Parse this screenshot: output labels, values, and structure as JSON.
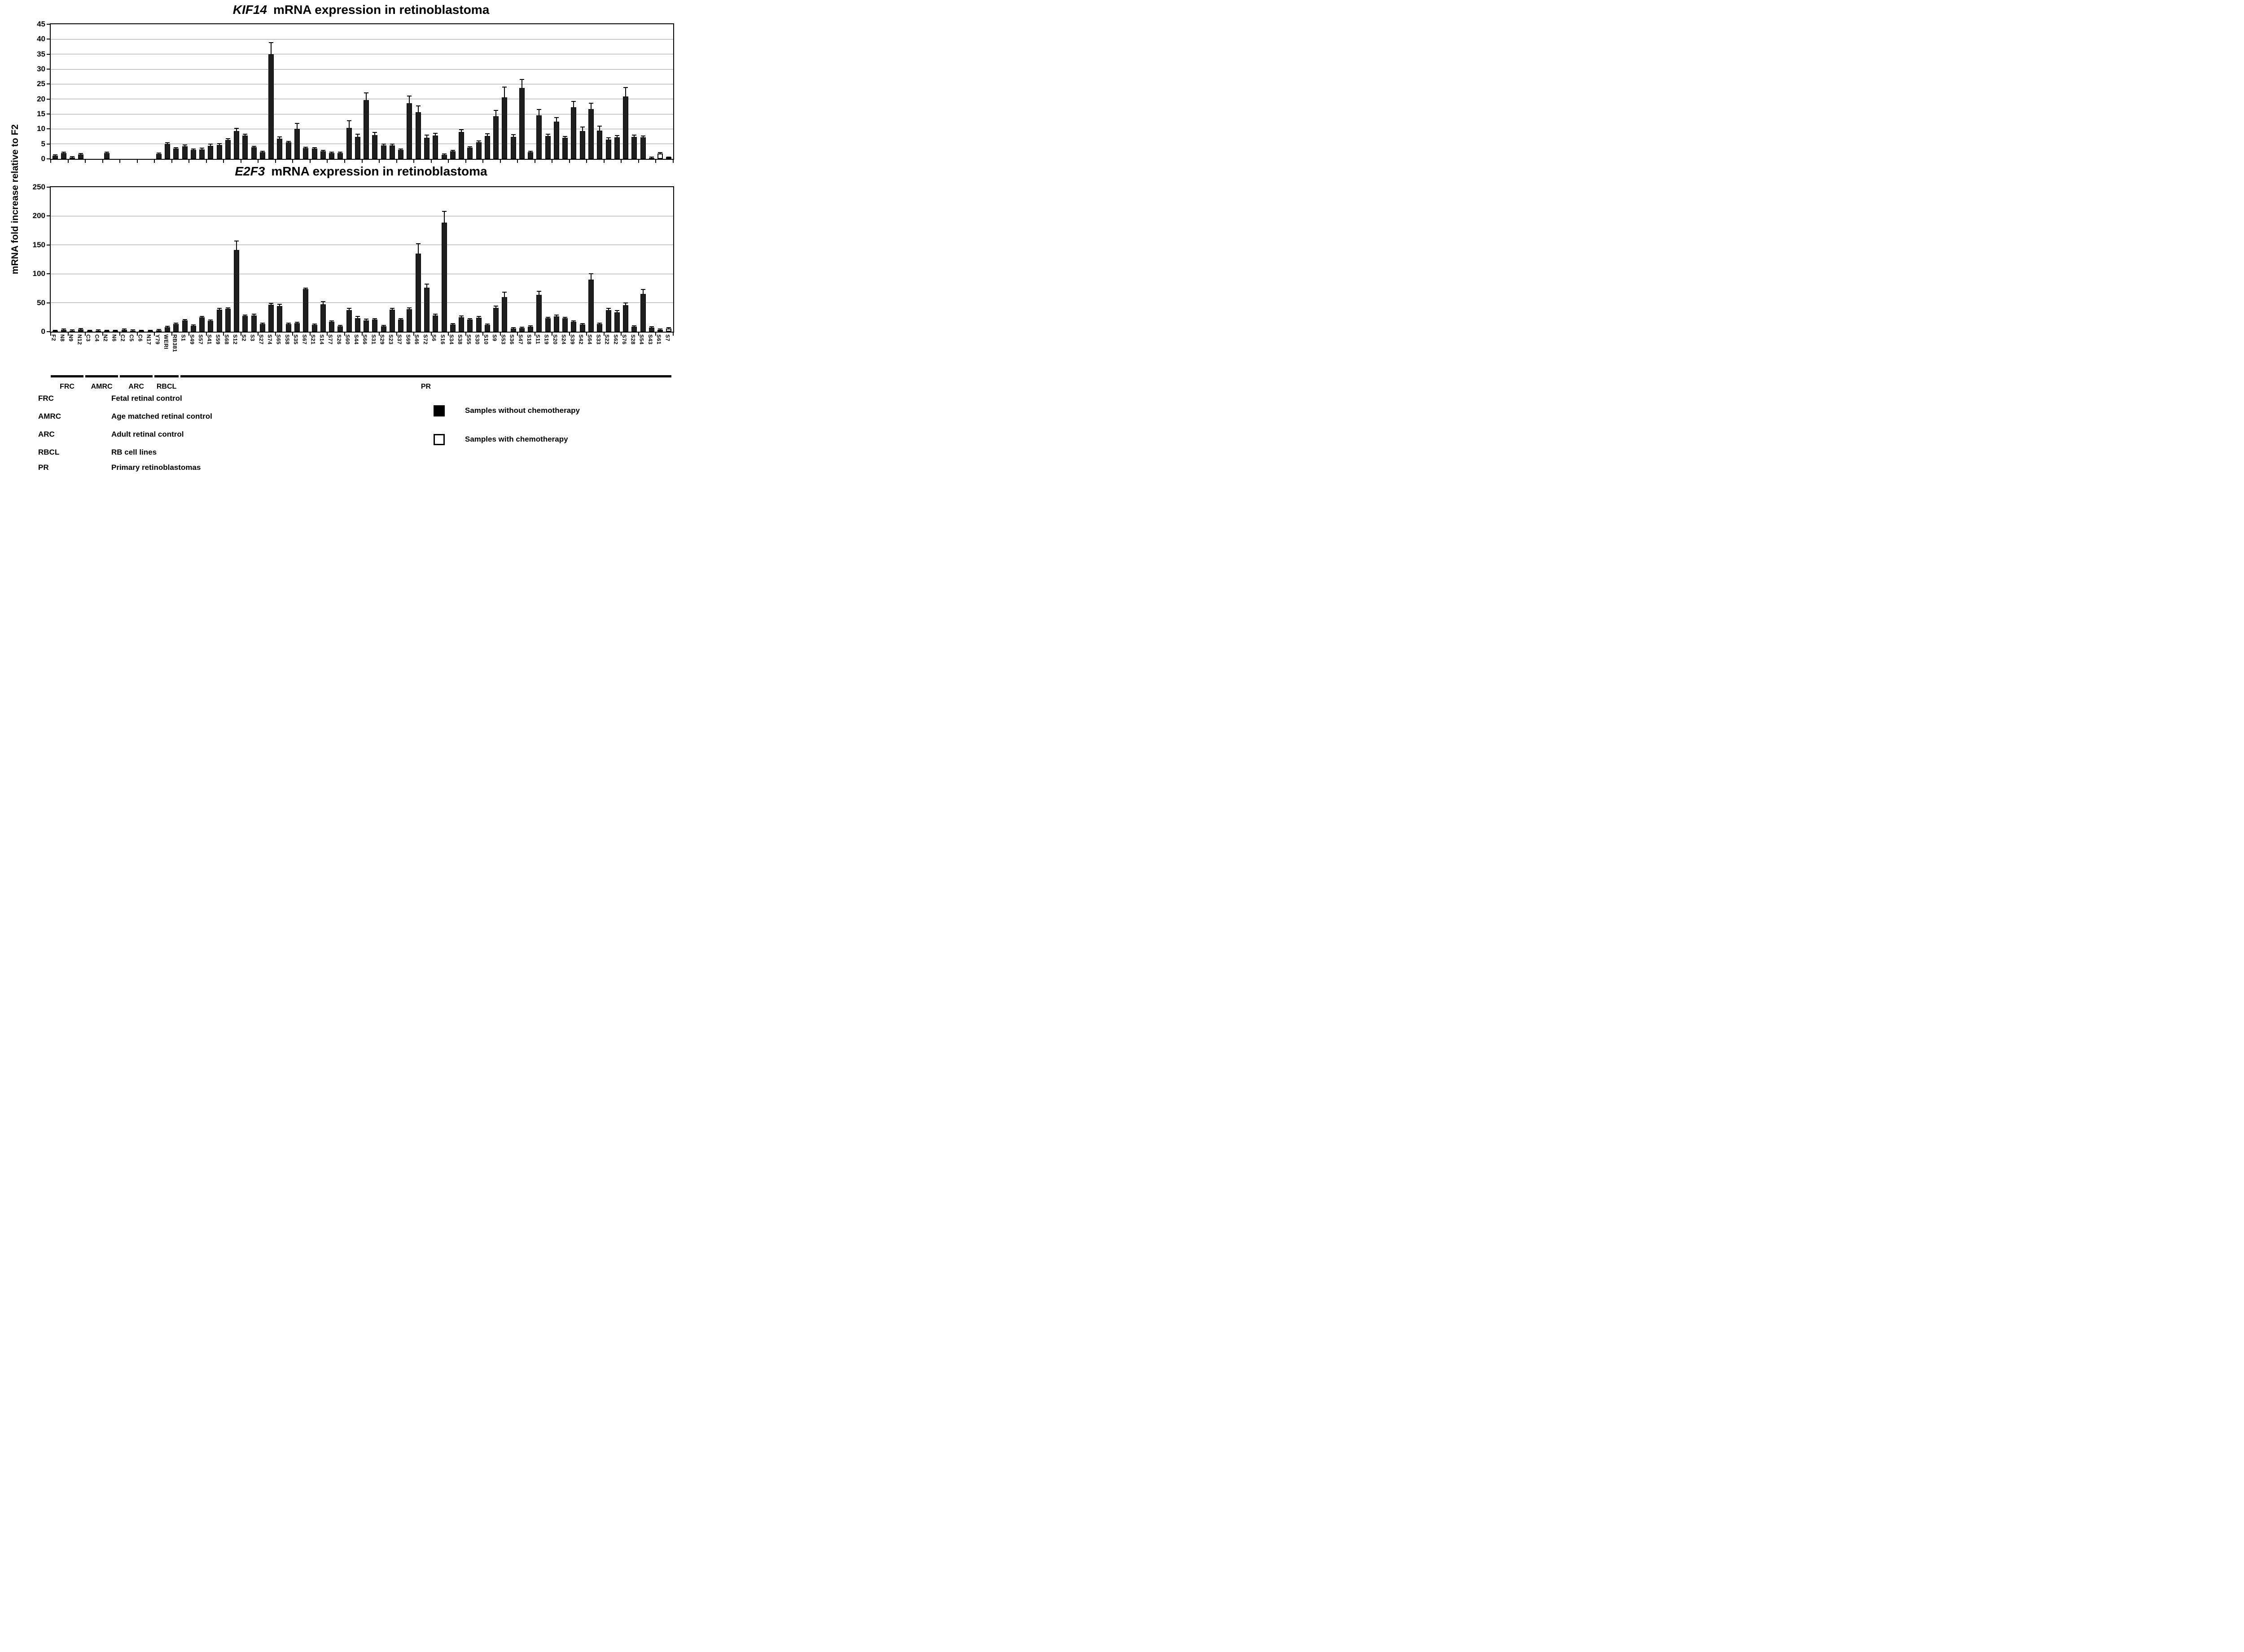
{
  "ylabel": "mRNA fold increase relative to F2",
  "chart_data": [
    {
      "type": "bar",
      "name": "kif14",
      "title": "KIF14  mRNA expression in retinoblastoma",
      "title_gene": "KIF14",
      "title_rest": "mRNA expression in retinoblastoma",
      "ylabel": "mRNA fold increase relative to F2",
      "ylim": [
        0,
        45
      ],
      "ytick_step": 5,
      "yticks": [
        0,
        5,
        10,
        15,
        20,
        25,
        30,
        35,
        40,
        45
      ],
      "grid": true,
      "categories": [
        "F2",
        "N8",
        "N9",
        "N12",
        "C3",
        "C4",
        "N2",
        "N6",
        "C2",
        "C5",
        "C6",
        "N17",
        "Y79",
        "WERI",
        "RB381",
        "S1",
        "S49",
        "S57",
        "S41",
        "S59",
        "S68",
        "S12",
        "S2",
        "S3",
        "S27",
        "S74",
        "S65",
        "S58",
        "S35",
        "S67",
        "S21",
        "S14",
        "S77",
        "S26",
        "S60",
        "S44",
        "S66",
        "S31",
        "S29",
        "S23",
        "S37",
        "S69",
        "S46",
        "S72",
        "S6",
        "S16",
        "S34",
        "S38",
        "S55",
        "S30",
        "S10",
        "S9",
        "S53",
        "S36",
        "S47",
        "S18",
        "S11",
        "S19",
        "S20",
        "S24",
        "S39",
        "S42",
        "S64",
        "S33",
        "S22",
        "S62",
        "S76",
        "S28",
        "S54",
        "S43",
        "S61",
        "S7"
      ],
      "values": [
        1.0,
        1.9,
        0.5,
        1.5,
        0,
        0,
        2.0,
        0,
        0,
        0,
        0,
        0,
        1.7,
        4.9,
        3.5,
        4.2,
        3.0,
        3.2,
        4.4,
        4.7,
        6.3,
        9.3,
        7.8,
        3.9,
        2.3,
        35.0,
        6.7,
        5.5,
        10.1,
        3.6,
        3.4,
        2.5,
        1.9,
        2.0,
        10.4,
        7.4,
        19.6,
        8.0,
        4.5,
        4.5,
        3.0,
        18.6,
        15.6,
        7.1,
        7.8,
        1.4,
        2.5,
        9.0,
        3.8,
        5.6,
        7.6,
        14.3,
        20.6,
        7.4,
        23.7,
        2.2,
        14.6,
        7.6,
        12.4,
        7.0,
        17.2,
        9.3,
        16.7,
        9.5,
        6.5,
        7.2,
        20.8,
        7.3,
        7.2,
        0.3,
        1.8,
        0.35
      ],
      "errors": [
        0.15,
        0.2,
        0.1,
        0.15,
        0,
        0,
        0.3,
        0,
        0,
        0,
        0,
        0,
        0.15,
        0.5,
        0.25,
        0.5,
        0.3,
        0.4,
        0.5,
        0.4,
        0.5,
        0.9,
        0.5,
        0.3,
        0.2,
        3.8,
        0.7,
        0.4,
        1.8,
        0.35,
        0.4,
        0.2,
        0.1,
        0.2,
        2.3,
        0.8,
        2.5,
        0.9,
        0.4,
        0.4,
        0.3,
        2.4,
        2.1,
        0.8,
        0.7,
        0.15,
        0.2,
        0.7,
        0.3,
        0.4,
        0.8,
        1.9,
        3.4,
        0.7,
        2.9,
        0.2,
        1.9,
        0.6,
        1.4,
        0.5,
        2.0,
        1.3,
        1.9,
        1.4,
        0.5,
        0.6,
        3.0,
        0.6,
        0.5,
        0.05,
        0.3,
        0.05
      ],
      "open_bar_categories": [
        "S61",
        "S7"
      ]
    },
    {
      "type": "bar",
      "name": "e2f3",
      "title": "E2F3  mRNA expression in retinoblastoma",
      "title_gene": "E2F3",
      "title_rest": "mRNA expression in retinoblastoma",
      "ylabel": "mRNA fold increase relative to F2",
      "ylim": [
        0,
        250
      ],
      "ytick_step": 50,
      "yticks": [
        0,
        50,
        100,
        150,
        200,
        250
      ],
      "grid": true,
      "categories": [
        "F2",
        "N8",
        "N9",
        "N12",
        "C3",
        "C4",
        "N2",
        "N6",
        "C2",
        "C5",
        "C6",
        "N17",
        "Y79",
        "WERI",
        "RB381",
        "S1",
        "S49",
        "S57",
        "S41",
        "S59",
        "S68",
        "S12",
        "S2",
        "S3",
        "S27",
        "S74",
        "S65",
        "S58",
        "S35",
        "S67",
        "S21",
        "S14",
        "S77",
        "S26",
        "S60",
        "S44",
        "S66",
        "S31",
        "S29",
        "S23",
        "S37",
        "S69",
        "S46",
        "S72",
        "S6",
        "S16",
        "S34",
        "S38",
        "S55",
        "S30",
        "S10",
        "S9",
        "S53",
        "S36",
        "S47",
        "S18",
        "S11",
        "S19",
        "S20",
        "S24",
        "S39",
        "S42",
        "S64",
        "S33",
        "S22",
        "S62",
        "S76",
        "S28",
        "S54",
        "S43",
        "S61",
        "S7"
      ],
      "values": [
        0.9,
        2.9,
        1.2,
        3.7,
        0.7,
        1.4,
        0.8,
        0.5,
        2.9,
        1.7,
        0.9,
        0.7,
        2.2,
        7.5,
        13.5,
        19.5,
        10.0,
        24.5,
        19.0,
        38.0,
        39.5,
        141,
        27,
        28,
        13.5,
        46.5,
        44,
        13,
        15,
        73.5,
        11.3,
        47.5,
        17,
        9,
        37.5,
        23.5,
        19.7,
        20.7,
        9.6,
        37.8,
        21.3,
        39,
        135,
        76,
        28,
        189,
        12.3,
        24.7,
        20.7,
        24,
        11.8,
        41,
        60,
        5.5,
        6.2,
        8.4,
        63.5,
        23,
        26.4,
        23,
        17.3,
        12.3,
        90,
        12.9,
        37.5,
        33.6,
        45.9,
        8.4,
        65,
        7.2,
        2.9,
        5.5
      ],
      "errors": [
        0.3,
        0.6,
        0.3,
        0.6,
        0.2,
        0.3,
        0.2,
        0.2,
        0.6,
        0.4,
        0.2,
        0.2,
        0.4,
        0.8,
        1.0,
        1.3,
        1.0,
        1.6,
        1.3,
        2.5,
        1.0,
        16,
        1.6,
        1.9,
        1.1,
        2.6,
        3.6,
        1.1,
        1.3,
        0.8,
        1.1,
        4.6,
        1.4,
        0.9,
        2.6,
        2.6,
        1.9,
        1.9,
        1.1,
        2.6,
        1.6,
        2.1,
        17,
        6,
        1.9,
        19,
        1.1,
        2.6,
        1.6,
        2.1,
        1.3,
        3.6,
        8,
        0.6,
        0.7,
        1.1,
        6,
        2.1,
        2.1,
        2.1,
        1.6,
        1.3,
        10,
        1.1,
        2.6,
        3.1,
        3.6,
        0.9,
        8,
        0.8,
        0.9,
        0.7
      ],
      "open_bar_categories": [
        "S61",
        "S7"
      ]
    }
  ],
  "groups": [
    {
      "label": "FRC",
      "start": 0,
      "end": 3
    },
    {
      "label": "AMRC",
      "start": 4,
      "end": 7
    },
    {
      "label": "ARC",
      "start": 8,
      "end": 11
    },
    {
      "label": "RBCL",
      "start": 12,
      "end": 14
    },
    {
      "label": "PR",
      "start": 15,
      "end": 71
    }
  ],
  "definitions": [
    {
      "abbr": "FRC",
      "text": "Fetal retinal control"
    },
    {
      "abbr": "AMRC",
      "text": "Age matched retinal control"
    },
    {
      "abbr": "ARC",
      "text": "Adult retinal control"
    },
    {
      "abbr": "RBCL",
      "text": "RB cell lines"
    },
    {
      "abbr": "PR",
      "text": "Primary retinoblastomas"
    }
  ],
  "legend": [
    {
      "swatch": "filled",
      "label": "Samples without chemotherapy"
    },
    {
      "swatch": "open",
      "label": "Samples with chemotherapy"
    }
  ],
  "colors": {
    "bar_fill": "#1f1f1f",
    "open_bar_fill": "#ffffff",
    "gridline": "#979797",
    "axis": "#000000"
  }
}
